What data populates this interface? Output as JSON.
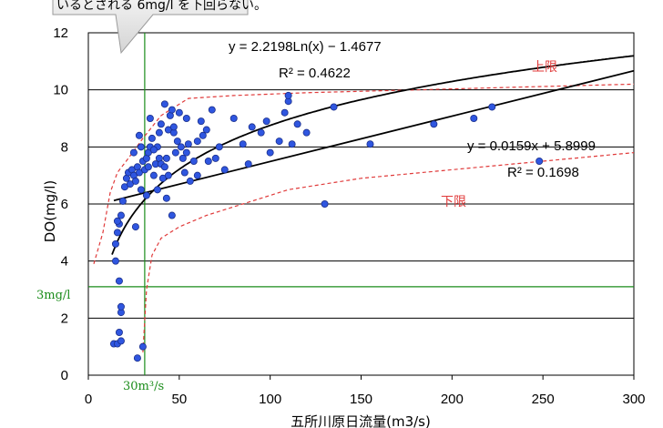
{
  "callout": {
    "text": "いるとされる 6mg/l を下回らない。"
  },
  "annotations": {
    "upper": "上限",
    "lower": "下限",
    "threshold_label": "3mg/l",
    "flow_label": "30m³/s"
  },
  "equations": {
    "log_eq": "y = 2.2198Ln(x) − 1.4677",
    "log_r2": "R² = 0.4622",
    "lin_eq": "y = 0.0159x + 5.8999",
    "lin_r2": "R² = 0.1698"
  },
  "colors": {
    "points": "#2f56e0",
    "envelope": "#e03a3a",
    "threshold": "#1a8c1a",
    "trend": "#000000"
  },
  "chart_data": {
    "type": "scatter",
    "xlabel": "五所川原日流量(m3/s)",
    "ylabel": "DO(mg/l)",
    "xlim": [
      0,
      300
    ],
    "ylim": [
      0,
      12
    ],
    "xticks": [
      0,
      50,
      100,
      150,
      200,
      250,
      300
    ],
    "yticks": [
      0,
      2,
      4,
      6,
      8,
      10,
      12
    ],
    "grid": "horizontal",
    "series": [
      {
        "points": [
          [
            14,
            1.1
          ],
          [
            16,
            1.1
          ],
          [
            17,
            1.5
          ],
          [
            18,
            1.2
          ],
          [
            18,
            2.2
          ],
          [
            18,
            2.4
          ],
          [
            17,
            3.3
          ],
          [
            15,
            4.0
          ],
          [
            15,
            4.6
          ],
          [
            16,
            5.0
          ],
          [
            17,
            5.3
          ],
          [
            16,
            5.4
          ],
          [
            18,
            5.6
          ],
          [
            19,
            6.1
          ],
          [
            20,
            6.6
          ],
          [
            21,
            6.9
          ],
          [
            22,
            7.1
          ],
          [
            23,
            6.7
          ],
          [
            24,
            7.2
          ],
          [
            25,
            7.0
          ],
          [
            26,
            6.8
          ],
          [
            27,
            7.3
          ],
          [
            28,
            7.1
          ],
          [
            29,
            6.5
          ],
          [
            30,
            7.5
          ],
          [
            31,
            7.2
          ],
          [
            32,
            7.6
          ],
          [
            33,
            7.8
          ],
          [
            34,
            8.0
          ],
          [
            35,
            8.3
          ],
          [
            36,
            7.0
          ],
          [
            37,
            7.4
          ],
          [
            38,
            8.0
          ],
          [
            39,
            7.6
          ],
          [
            40,
            7.4
          ],
          [
            41,
            6.9
          ],
          [
            42,
            7.3
          ],
          [
            43,
            7.6
          ],
          [
            44,
            8.6
          ],
          [
            45,
            9.1
          ],
          [
            46,
            9.3
          ],
          [
            47,
            8.5
          ],
          [
            48,
            7.8
          ],
          [
            49,
            8.2
          ],
          [
            50,
            9.2
          ],
          [
            51,
            8.0
          ],
          [
            52,
            7.6
          ],
          [
            53,
            7.1
          ],
          [
            54,
            7.8
          ],
          [
            55,
            8.1
          ],
          [
            56,
            6.8
          ],
          [
            58,
            7.5
          ],
          [
            60,
            8.2
          ],
          [
            62,
            8.9
          ],
          [
            65,
            8.6
          ],
          [
            68,
            9.3
          ],
          [
            70,
            7.6
          ],
          [
            72,
            8.0
          ],
          [
            75,
            7.2
          ],
          [
            80,
            9.0
          ],
          [
            85,
            8.1
          ],
          [
            88,
            7.4
          ],
          [
            90,
            8.7
          ],
          [
            95,
            8.5
          ],
          [
            98,
            8.9
          ],
          [
            100,
            7.8
          ],
          [
            105,
            8.2
          ],
          [
            108,
            9.2
          ],
          [
            110,
            9.6
          ],
          [
            110,
            9.8
          ],
          [
            112,
            8.1
          ],
          [
            115,
            8.8
          ],
          [
            120,
            8.5
          ],
          [
            130,
            6.0
          ],
          [
            135,
            9.4
          ],
          [
            155,
            8.1
          ],
          [
            190,
            8.8
          ],
          [
            212,
            9.0
          ],
          [
            222,
            9.4
          ],
          [
            248,
            7.5
          ],
          [
            43,
            6.2
          ],
          [
            46,
            5.6
          ],
          [
            26,
            5.2
          ],
          [
            32,
            6.3
          ],
          [
            38,
            6.5
          ],
          [
            44,
            7.0
          ],
          [
            30,
            1.0
          ],
          [
            27,
            0.6
          ],
          [
            25,
            7.8
          ],
          [
            28,
            8.4
          ],
          [
            34,
            9.0
          ],
          [
            40,
            8.8
          ],
          [
            42,
            9.5
          ],
          [
            36,
            7.9
          ],
          [
            54,
            9.0
          ],
          [
            60,
            7.0
          ],
          [
            63,
            8.4
          ],
          [
            66,
            7.5
          ],
          [
            29,
            8.0
          ],
          [
            33,
            7.3
          ],
          [
            39,
            8.5
          ],
          [
            47,
            8.7
          ]
        ]
      }
    ],
    "trendlines": [
      {
        "kind": "log",
        "a": 2.2198,
        "b": -1.4677
      },
      {
        "kind": "linear",
        "slope": 0.0159,
        "intercept": 5.8999
      }
    ],
    "envelopes": {
      "upper": [
        [
          3,
          3.9
        ],
        [
          8,
          5.0
        ],
        [
          12,
          6.4
        ],
        [
          16,
          7.1
        ],
        [
          22,
          7.6
        ],
        [
          30,
          8.3
        ],
        [
          40,
          9.1
        ],
        [
          55,
          9.7
        ],
        [
          80,
          9.8
        ],
        [
          120,
          9.9
        ],
        [
          180,
          10.0
        ],
        [
          240,
          10.1
        ],
        [
          300,
          10.2
        ]
      ],
      "lower": [
        [
          30,
          0.8
        ],
        [
          32,
          3.0
        ],
        [
          35,
          4.2
        ],
        [
          40,
          4.8
        ],
        [
          50,
          5.2
        ],
        [
          65,
          5.6
        ],
        [
          80,
          5.9
        ],
        [
          110,
          6.5
        ],
        [
          150,
          6.9
        ],
        [
          200,
          7.2
        ],
        [
          250,
          7.5
        ],
        [
          300,
          7.8
        ]
      ]
    },
    "reference_lines": {
      "y": 3.1,
      "x": 31
    }
  }
}
